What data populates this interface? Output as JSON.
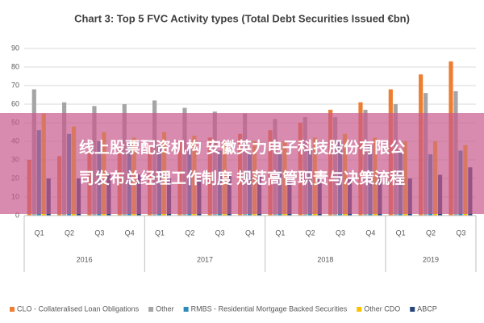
{
  "chart_data": {
    "type": "bar",
    "title": "Chart 3: Top 5 FVC Activity types (Total Debt Securities Issued €bn)",
    "categories": [
      "Q1",
      "Q2",
      "Q3",
      "Q4",
      "Q1",
      "Q2",
      "Q3",
      "Q4",
      "Q1",
      "Q2",
      "Q3",
      "Q4",
      "Q1",
      "Q2",
      "Q3"
    ],
    "groups": [
      {
        "label": "2016",
        "size": 4
      },
      {
        "label": "2017",
        "size": 4
      },
      {
        "label": "2018",
        "size": 4
      },
      {
        "label": "2019",
        "size": 3
      }
    ],
    "series": [
      {
        "name": "CLO - Collateralised Loan Obligations",
        "color": "#ed7d31",
        "values": [
          30,
          32,
          35,
          36,
          38,
          40,
          42,
          44,
          46,
          50,
          57,
          61,
          68,
          76,
          83
        ]
      },
      {
        "name": "Other",
        "color": "#a5a5a5",
        "values": [
          68,
          61,
          59,
          60,
          62,
          58,
          56,
          55,
          52,
          53,
          53,
          57,
          60,
          66,
          67
        ]
      },
      {
        "name": "RMBS - Residential Mortgage Backed Securities",
        "color": "#2e8bb8",
        "values": [
          46,
          44,
          40,
          40,
          38,
          36,
          35,
          34,
          33,
          36,
          40,
          38,
          35,
          33,
          35
        ]
      },
      {
        "name": "Other CDO",
        "color": "#ffc000",
        "values": [
          55,
          48,
          45,
          42,
          45,
          43,
          40,
          40,
          40,
          42,
          44,
          42,
          40,
          40,
          38
        ]
      },
      {
        "name": "ABCP",
        "color": "#264478",
        "values": [
          20,
          20,
          22,
          22,
          20,
          20,
          22,
          22,
          20,
          20,
          20,
          22,
          20,
          22,
          26
        ]
      }
    ],
    "ylim": [
      0,
      90
    ],
    "yticks": [
      0,
      10,
      20,
      30,
      40,
      50,
      60,
      70,
      80,
      90
    ],
    "grid": true,
    "overlay_text": [
      "线上股票配资机构 安徽英力电子科技股份有限公",
      "司发布总经理工作制度 规范高管职责与决策流程"
    ]
  }
}
